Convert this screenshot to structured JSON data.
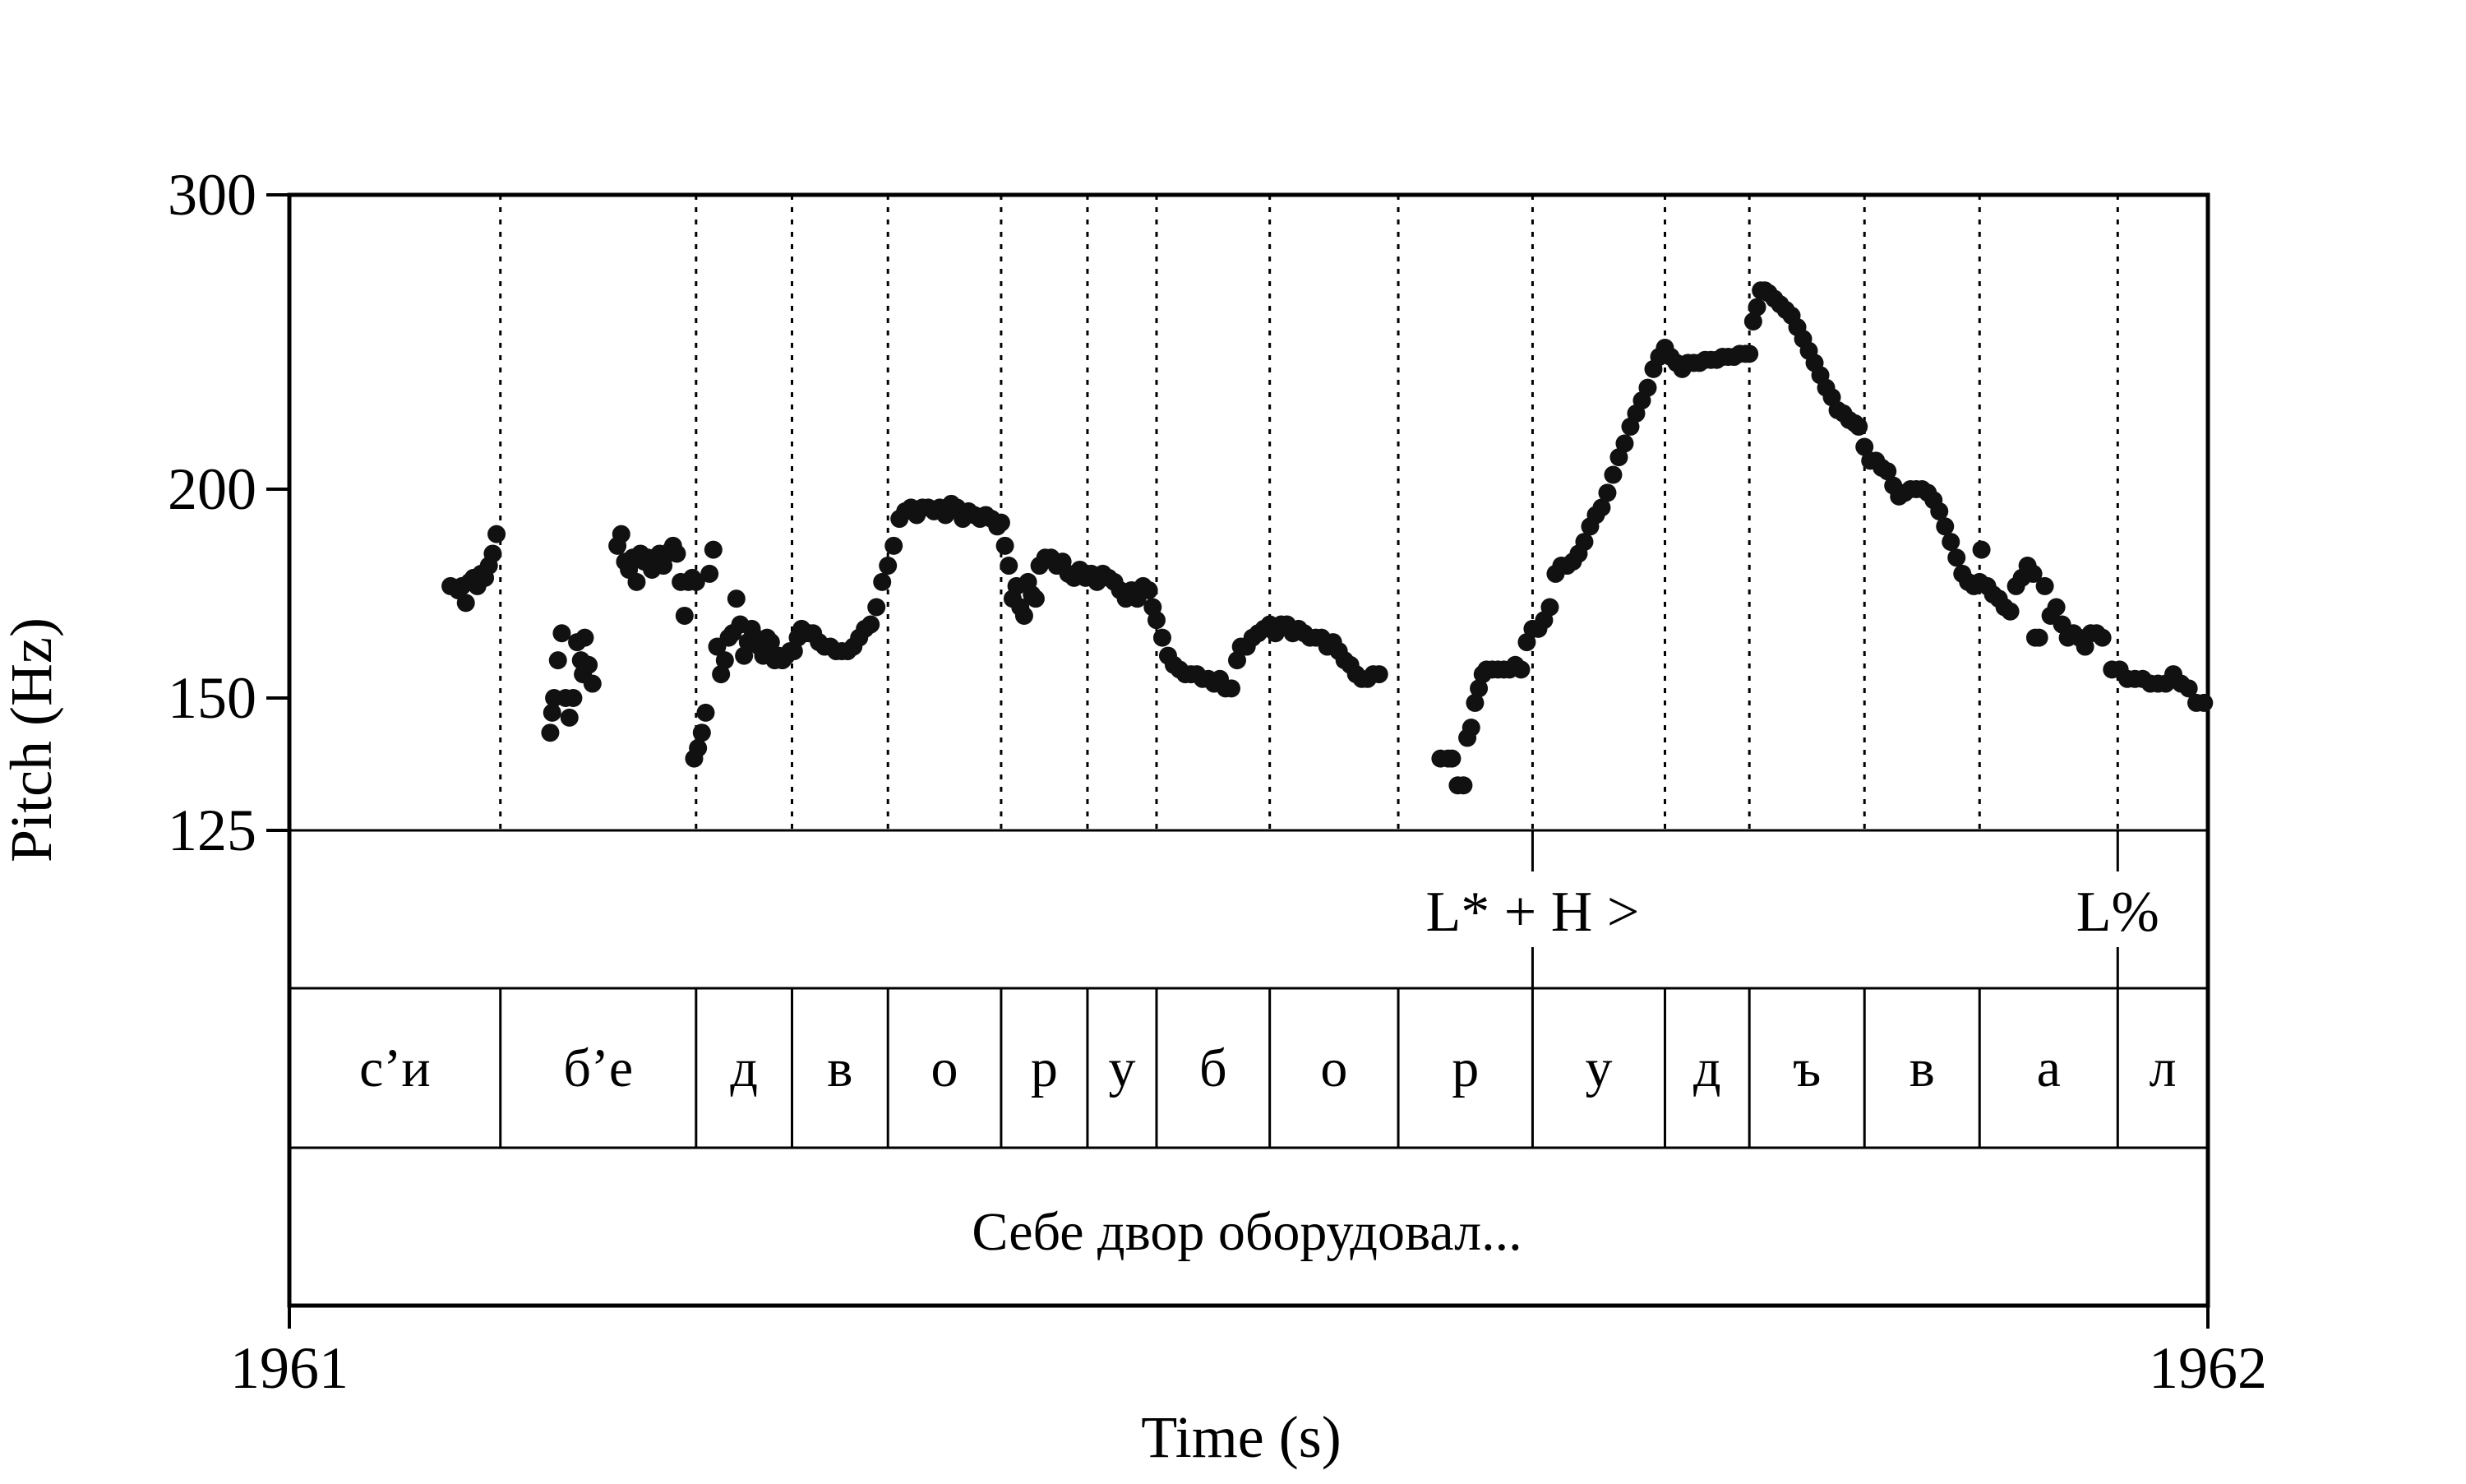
{
  "chart_data": {
    "type": "scatter",
    "title": "",
    "xlabel": "Time (s)",
    "ylabel": "Pitch (Hz)",
    "x_tick_labels": [
      "1961",
      "1962"
    ],
    "y_scale": "log",
    "ylim": [
      125,
      300
    ],
    "y_ticks": [
      {
        "value": 300,
        "label": "300"
      },
      {
        "value": 200,
        "label": "200"
      },
      {
        "value": 150,
        "label": "150"
      },
      {
        "value": 125,
        "label": "125"
      }
    ],
    "segment_boundaries": [
      0.11,
      0.212,
      0.262,
      0.312,
      0.371,
      0.416,
      0.452,
      0.511,
      0.578,
      0.648,
      0.717,
      0.761,
      0.821,
      0.881,
      0.953
    ],
    "segments": [
      "с’и",
      "б’е",
      "д",
      "в",
      "о",
      "р",
      "у",
      "б",
      "о",
      "р",
      "у",
      "д",
      "ъ",
      "в",
      "а",
      "л"
    ],
    "tones": [
      {
        "label": "L* + H >",
        "time": 0.648
      },
      {
        "label": "L%",
        "time": 0.953
      }
    ],
    "sentence": "Себе двор оборудовал...",
    "pitch_points": [
      [
        0.084,
        175
      ],
      [
        0.088,
        174
      ],
      [
        0.09,
        175
      ],
      [
        0.092,
        171
      ],
      [
        0.094,
        176
      ],
      [
        0.096,
        177
      ],
      [
        0.098,
        175
      ],
      [
        0.1,
        178
      ],
      [
        0.102,
        177
      ],
      [
        0.104,
        180
      ],
      [
        0.106,
        183
      ],
      [
        0.108,
        188
      ],
      [
        0.136,
        143
      ],
      [
        0.137,
        147
      ],
      [
        0.138,
        150
      ],
      [
        0.14,
        158
      ],
      [
        0.142,
        164
      ],
      [
        0.144,
        150
      ],
      [
        0.146,
        146
      ],
      [
        0.148,
        150
      ],
      [
        0.15,
        162
      ],
      [
        0.152,
        158
      ],
      [
        0.153,
        155
      ],
      [
        0.154,
        163
      ],
      [
        0.156,
        157
      ],
      [
        0.158,
        153
      ],
      [
        0.171,
        185
      ],
      [
        0.173,
        188
      ],
      [
        0.175,
        181
      ],
      [
        0.177,
        179
      ],
      [
        0.179,
        182
      ],
      [
        0.181,
        176
      ],
      [
        0.183,
        183
      ],
      [
        0.185,
        181
      ],
      [
        0.187,
        182
      ],
      [
        0.189,
        179
      ],
      [
        0.191,
        182
      ],
      [
        0.193,
        183
      ],
      [
        0.195,
        180
      ],
      [
        0.197,
        183
      ],
      [
        0.199,
        184
      ],
      [
        0.2,
        185
      ],
      [
        0.202,
        183
      ],
      [
        0.204,
        176
      ],
      [
        0.206,
        168
      ],
      [
        0.208,
        176
      ],
      [
        0.21,
        177
      ],
      [
        0.212,
        176
      ],
      [
        0.211,
        138
      ],
      [
        0.213,
        140
      ],
      [
        0.215,
        143
      ],
      [
        0.217,
        147
      ],
      [
        0.219,
        178
      ],
      [
        0.221,
        184
      ],
      [
        0.223,
        161
      ],
      [
        0.225,
        155
      ],
      [
        0.227,
        158
      ],
      [
        0.229,
        163
      ],
      [
        0.231,
        164
      ],
      [
        0.233,
        172
      ],
      [
        0.235,
        166
      ],
      [
        0.237,
        159
      ],
      [
        0.239,
        162
      ],
      [
        0.241,
        165
      ],
      [
        0.243,
        163
      ],
      [
        0.245,
        161
      ],
      [
        0.247,
        159
      ],
      [
        0.249,
        163
      ],
      [
        0.251,
        162
      ],
      [
        0.253,
        158
      ],
      [
        0.255,
        159
      ],
      [
        0.257,
        158
      ],
      [
        0.259,
        159
      ],
      [
        0.261,
        160
      ],
      [
        0.263,
        160
      ],
      [
        0.265,
        163
      ],
      [
        0.267,
        165
      ],
      [
        0.269,
        164
      ],
      [
        0.271,
        164
      ],
      [
        0.273,
        164
      ],
      [
        0.276,
        162
      ],
      [
        0.279,
        161
      ],
      [
        0.282,
        161
      ],
      [
        0.285,
        160
      ],
      [
        0.288,
        160
      ],
      [
        0.291,
        160
      ],
      [
        0.294,
        161
      ],
      [
        0.297,
        163
      ],
      [
        0.3,
        165
      ],
      [
        0.303,
        166
      ],
      [
        0.306,
        170
      ],
      [
        0.309,
        176
      ],
      [
        0.312,
        180
      ],
      [
        0.315,
        185
      ],
      [
        0.318,
        192
      ],
      [
        0.321,
        194
      ],
      [
        0.324,
        195
      ],
      [
        0.327,
        193
      ],
      [
        0.33,
        195
      ],
      [
        0.333,
        195
      ],
      [
        0.336,
        194
      ],
      [
        0.339,
        195
      ],
      [
        0.342,
        193
      ],
      [
        0.345,
        196
      ],
      [
        0.348,
        195
      ],
      [
        0.351,
        192
      ],
      [
        0.354,
        194
      ],
      [
        0.357,
        193
      ],
      [
        0.36,
        192
      ],
      [
        0.363,
        193
      ],
      [
        0.366,
        192
      ],
      [
        0.369,
        190
      ],
      [
        0.371,
        191
      ],
      [
        0.373,
        185
      ],
      [
        0.375,
        180
      ],
      [
        0.377,
        172
      ],
      [
        0.379,
        175
      ],
      [
        0.381,
        170
      ],
      [
        0.383,
        168
      ],
      [
        0.385,
        176
      ],
      [
        0.387,
        173
      ],
      [
        0.389,
        172
      ],
      [
        0.391,
        180
      ],
      [
        0.394,
        182
      ],
      [
        0.397,
        182
      ],
      [
        0.4,
        180
      ],
      [
        0.403,
        181
      ],
      [
        0.406,
        178
      ],
      [
        0.409,
        177
      ],
      [
        0.412,
        179
      ],
      [
        0.415,
        177
      ],
      [
        0.418,
        178
      ],
      [
        0.421,
        176
      ],
      [
        0.424,
        178
      ],
      [
        0.427,
        177
      ],
      [
        0.43,
        176
      ],
      [
        0.433,
        174
      ],
      [
        0.436,
        172
      ],
      [
        0.439,
        174
      ],
      [
        0.442,
        172
      ],
      [
        0.445,
        175
      ],
      [
        0.448,
        174
      ],
      [
        0.45,
        170
      ],
      [
        0.452,
        167
      ],
      [
        0.455,
        163
      ],
      [
        0.458,
        159
      ],
      [
        0.461,
        157
      ],
      [
        0.464,
        156
      ],
      [
        0.467,
        155
      ],
      [
        0.47,
        155
      ],
      [
        0.473,
        155
      ],
      [
        0.476,
        154
      ],
      [
        0.479,
        154
      ],
      [
        0.482,
        153
      ],
      [
        0.485,
        154
      ],
      [
        0.488,
        152
      ],
      [
        0.491,
        152
      ],
      [
        0.494,
        158
      ],
      [
        0.496,
        161
      ],
      [
        0.499,
        161
      ],
      [
        0.502,
        163
      ],
      [
        0.505,
        164
      ],
      [
        0.508,
        165
      ],
      [
        0.511,
        166
      ],
      [
        0.514,
        164
      ],
      [
        0.517,
        166
      ],
      [
        0.52,
        166
      ],
      [
        0.523,
        164
      ],
      [
        0.526,
        165
      ],
      [
        0.529,
        164
      ],
      [
        0.532,
        163
      ],
      [
        0.535,
        163
      ],
      [
        0.538,
        163
      ],
      [
        0.541,
        161
      ],
      [
        0.544,
        162
      ],
      [
        0.547,
        160
      ],
      [
        0.55,
        158
      ],
      [
        0.553,
        157
      ],
      [
        0.556,
        155
      ],
      [
        0.559,
        154
      ],
      [
        0.562,
        154
      ],
      [
        0.565,
        155
      ],
      [
        0.568,
        155
      ],
      [
        0.6,
        138
      ],
      [
        0.604,
        138
      ],
      [
        0.606,
        138
      ],
      [
        0.609,
        133
      ],
      [
        0.612,
        133
      ],
      [
        0.614,
        142
      ],
      [
        0.616,
        144
      ],
      [
        0.618,
        149
      ],
      [
        0.62,
        152
      ],
      [
        0.622,
        155
      ],
      [
        0.624,
        156
      ],
      [
        0.627,
        156
      ],
      [
        0.63,
        156
      ],
      [
        0.633,
        156
      ],
      [
        0.636,
        156
      ],
      [
        0.639,
        157
      ],
      [
        0.642,
        156
      ],
      [
        0.645,
        162
      ],
      [
        0.648,
        165
      ],
      [
        0.651,
        165
      ],
      [
        0.654,
        167
      ],
      [
        0.657,
        170
      ],
      [
        0.66,
        178
      ],
      [
        0.663,
        180
      ],
      [
        0.666,
        180
      ],
      [
        0.669,
        181
      ],
      [
        0.672,
        183
      ],
      [
        0.675,
        186
      ],
      [
        0.678,
        190
      ],
      [
        0.681,
        193
      ],
      [
        0.684,
        195
      ],
      [
        0.687,
        199
      ],
      [
        0.69,
        204
      ],
      [
        0.693,
        209
      ],
      [
        0.696,
        213
      ],
      [
        0.699,
        218
      ],
      [
        0.702,
        222
      ],
      [
        0.705,
        226
      ],
      [
        0.708,
        230
      ],
      [
        0.711,
        236
      ],
      [
        0.714,
        240
      ],
      [
        0.717,
        243
      ],
      [
        0.72,
        240
      ],
      [
        0.723,
        238
      ],
      [
        0.726,
        236
      ],
      [
        0.729,
        238
      ],
      [
        0.732,
        238
      ],
      [
        0.735,
        238
      ],
      [
        0.738,
        239
      ],
      [
        0.741,
        239
      ],
      [
        0.744,
        239
      ],
      [
        0.747,
        240
      ],
      [
        0.75,
        240
      ],
      [
        0.753,
        240
      ],
      [
        0.756,
        241
      ],
      [
        0.759,
        241
      ],
      [
        0.761,
        241
      ],
      [
        0.763,
        252
      ],
      [
        0.765,
        257
      ],
      [
        0.767,
        263
      ],
      [
        0.769,
        263
      ],
      [
        0.771,
        262
      ],
      [
        0.774,
        260
      ],
      [
        0.777,
        258
      ],
      [
        0.78,
        256
      ],
      [
        0.783,
        254
      ],
      [
        0.786,
        250
      ],
      [
        0.789,
        246
      ],
      [
        0.792,
        242
      ],
      [
        0.795,
        238
      ],
      [
        0.798,
        234
      ],
      [
        0.801,
        230
      ],
      [
        0.804,
        227
      ],
      [
        0.807,
        223
      ],
      [
        0.81,
        222
      ],
      [
        0.813,
        220
      ],
      [
        0.816,
        219
      ],
      [
        0.818,
        218
      ],
      [
        0.821,
        212
      ],
      [
        0.824,
        208
      ],
      [
        0.827,
        208
      ],
      [
        0.83,
        206
      ],
      [
        0.833,
        205
      ],
      [
        0.836,
        201
      ],
      [
        0.839,
        198
      ],
      [
        0.842,
        199
      ],
      [
        0.845,
        200
      ],
      [
        0.848,
        200
      ],
      [
        0.851,
        200
      ],
      [
        0.854,
        199
      ],
      [
        0.857,
        197
      ],
      [
        0.86,
        194
      ],
      [
        0.863,
        190
      ],
      [
        0.866,
        186
      ],
      [
        0.869,
        182
      ],
      [
        0.872,
        178
      ],
      [
        0.875,
        176
      ],
      [
        0.878,
        175
      ],
      [
        0.881,
        176
      ],
      [
        0.882,
        184
      ],
      [
        0.885,
        175
      ],
      [
        0.888,
        173
      ],
      [
        0.891,
        172
      ],
      [
        0.894,
        170
      ],
      [
        0.897,
        169
      ],
      [
        0.9,
        175
      ],
      [
        0.903,
        177
      ],
      [
        0.906,
        180
      ],
      [
        0.909,
        178
      ],
      [
        0.91,
        163
      ],
      [
        0.912,
        163
      ],
      [
        0.915,
        175
      ],
      [
        0.918,
        168
      ],
      [
        0.921,
        170
      ],
      [
        0.924,
        166
      ],
      [
        0.927,
        163
      ],
      [
        0.93,
        164
      ],
      [
        0.933,
        163
      ],
      [
        0.936,
        161
      ],
      [
        0.939,
        164
      ],
      [
        0.942,
        164
      ],
      [
        0.945,
        163
      ],
      [
        0.95,
        156
      ],
      [
        0.954,
        156
      ],
      [
        0.958,
        154
      ],
      [
        0.962,
        154
      ],
      [
        0.966,
        154
      ],
      [
        0.97,
        153
      ],
      [
        0.974,
        153
      ],
      [
        0.978,
        153
      ],
      [
        0.982,
        155
      ],
      [
        0.986,
        153
      ],
      [
        0.99,
        152
      ],
      [
        0.994,
        149
      ],
      [
        0.998,
        149
      ]
    ]
  }
}
